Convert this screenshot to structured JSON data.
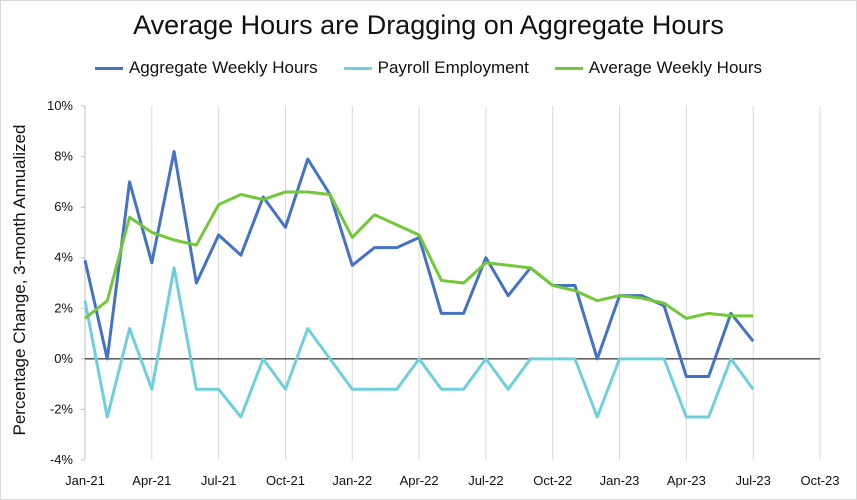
{
  "chart_data": {
    "type": "line",
    "title": "Average Hours are Dragging on Aggregate Hours",
    "xlabel": "",
    "ylabel": "Percentage Change, 3-month Annualized",
    "ylim": [
      -4,
      10
    ],
    "yticks": [
      -4,
      -2,
      0,
      2,
      4,
      6,
      8,
      10
    ],
    "ytick_labels": [
      "-4%",
      "-2%",
      "0%",
      "2%",
      "4%",
      "6%",
      "8%",
      "10%"
    ],
    "xtick_labels": [
      "Jan-21",
      "Apr-21",
      "Jul-21",
      "Oct-21",
      "Jan-22",
      "Apr-22",
      "Jul-22",
      "Oct-22",
      "Jan-23",
      "Apr-23",
      "Jul-23",
      "Oct-23"
    ],
    "x_start": "Jan-21",
    "n_months": 34,
    "legend_position": "top",
    "grid": "vertical",
    "series": [
      {
        "name": "Aggregate Weekly Hours",
        "color": "#4472c4",
        "values": [
          3.9,
          0.0,
          7.0,
          3.8,
          8.2,
          3.0,
          4.9,
          4.1,
          6.4,
          5.2,
          7.9,
          6.5,
          3.7,
          4.4,
          4.4,
          4.8,
          1.8,
          1.8,
          4.0,
          2.5,
          3.6,
          2.9,
          2.9,
          0.0,
          2.5,
          2.5,
          2.1,
          -0.7,
          -0.7,
          1.8,
          0.7
        ]
      },
      {
        "name": "Payroll Employment",
        "color": "#6fd0dc",
        "values": [
          2.3,
          -2.3,
          1.2,
          -1.2,
          3.6,
          -1.2,
          -1.2,
          -2.3,
          0.0,
          -1.2,
          1.2,
          0.0,
          -1.2,
          -1.2,
          -1.2,
          0.0,
          -1.2,
          -1.2,
          0.0,
          -1.2,
          0.0,
          0.0,
          0.0,
          -2.3,
          0.0,
          0.0,
          0.0,
          -2.3,
          -2.3,
          0.0,
          -1.2
        ]
      },
      {
        "name": "Average Weekly Hours",
        "color": "#72c837",
        "values": [
          1.6,
          2.3,
          5.6,
          5.0,
          4.7,
          4.5,
          6.1,
          6.5,
          6.3,
          6.6,
          6.6,
          6.5,
          4.8,
          5.7,
          5.3,
          4.9,
          3.1,
          3.0,
          3.8,
          3.7,
          3.6,
          2.9,
          2.7,
          2.3,
          2.5,
          2.4,
          2.2,
          1.6,
          1.8,
          1.7,
          1.7
        ]
      }
    ]
  }
}
